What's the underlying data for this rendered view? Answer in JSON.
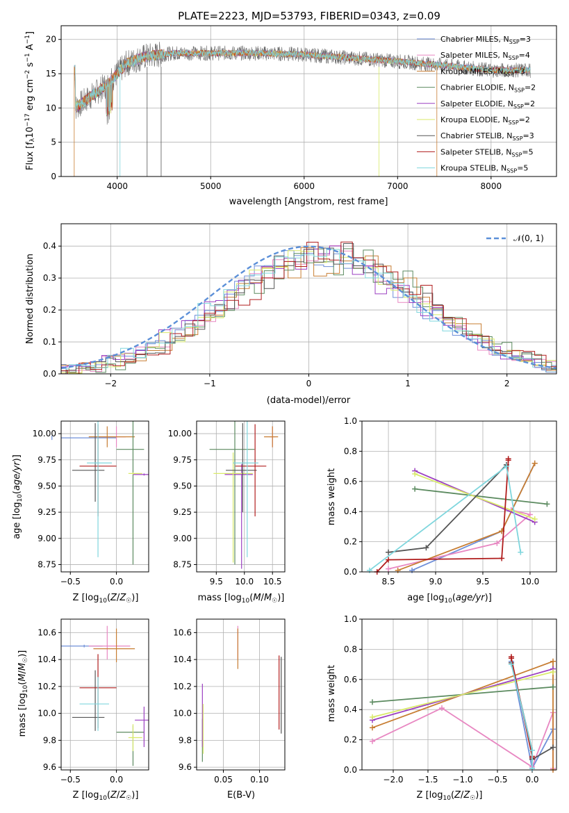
{
  "figure": {
    "title": "PLATE=2223, MJD=53793, FIBERID=0343, z=0.09"
  },
  "spectrum_panel": {
    "xlabel": "wavelength [Angstrom, rest frame]",
    "ylabel": "Flux [f_λ 10^-17 erg cm^-2 s^-1 A^-1]",
    "xticks": [
      "4000",
      "5000",
      "6000",
      "7000",
      "8000"
    ],
    "yticks": [
      "0",
      "5",
      "10",
      "15",
      "20"
    ]
  },
  "residual_panel": {
    "xlabel": "(data-model)/error",
    "ylabel": "Normed distribution",
    "xticks": [
      "−2",
      "−1",
      "0",
      "1",
      "2"
    ],
    "yticks": [
      "0.0",
      "0.1",
      "0.2",
      "0.3",
      "0.4"
    ],
    "legend_label": "𝒩(0, 1)"
  },
  "legend": [
    {
      "main": "Chabrier MILES, N",
      "sub": "SSP",
      "tail": "=3",
      "color": "#6f8fd8"
    },
    {
      "main": "Salpeter MILES, N",
      "sub": "SSP",
      "tail": "=4",
      "color": "#e887c2"
    },
    {
      "main": "Kroupa MILES, N",
      "sub": "SSP",
      "tail": "=3",
      "color": "#c77d32"
    },
    {
      "main": "Chabrier ELODIE, N",
      "sub": "SSP",
      "tail": "=2",
      "color": "#5b8a5f"
    },
    {
      "main": "Salpeter ELODIE, N",
      "sub": "SSP",
      "tail": "=2",
      "color": "#9b3fc1"
    },
    {
      "main": "Kroupa ELODIE, N",
      "sub": "SSP",
      "tail": "=2",
      "color": "#d9ea6a"
    },
    {
      "main": "Chabrier STELIB, N",
      "sub": "SSP",
      "tail": "=3",
      "color": "#555555"
    },
    {
      "main": "Salpeter STELIB, N",
      "sub": "SSP",
      "tail": "=5",
      "color": "#b01c1c"
    },
    {
      "main": "Kroupa STELIB, N",
      "sub": "SSP",
      "tail": "=5",
      "color": "#7fd6dd"
    }
  ],
  "small_panels": {
    "age_vs_Z": {
      "xlabel": "Z [log10(Z/Z☉)]",
      "ylabel": "age  [log10(age/yr)]",
      "xticks": [
        "−0.5",
        "0.0"
      ],
      "yticks": [
        "8.75",
        "9.00",
        "9.25",
        "9.50",
        "9.75",
        "10.00"
      ]
    },
    "age_vs_mass": {
      "xlabel": "mass [log10(M/M☉)]",
      "xticks": [
        "9.5",
        "10.0",
        "10.5"
      ],
      "yticks": [
        "8.75",
        "9.00",
        "9.25",
        "9.50",
        "9.75",
        "10.00"
      ]
    },
    "mass_vs_Z": {
      "xlabel": "Z [log10(Z/Z☉)]",
      "ylabel": "mass [log10(M/M☉)]",
      "xticks": [
        "−0.5",
        "0.0"
      ],
      "yticks": [
        "9.6",
        "9.8",
        "10.0",
        "10.2",
        "10.4",
        "10.6"
      ]
    },
    "mass_vs_EBV": {
      "xlabel": "E(B-V)",
      "xticks": [
        "0.05",
        "0.10"
      ],
      "yticks": [
        "9.6",
        "9.8",
        "10.0",
        "10.2",
        "10.4",
        "10.6"
      ]
    }
  },
  "weight_panels": {
    "vs_age": {
      "xlabel": "age  [log10(age/yr)]",
      "ylabel": "mass weight",
      "xticks": [
        "8.5",
        "9.0",
        "9.5",
        "10.0"
      ],
      "yticks": [
        "0.0",
        "0.2",
        "0.4",
        "0.6",
        "0.8",
        "1.0"
      ]
    },
    "vs_Z": {
      "xlabel": "Z [log10(Z/Z☉)]",
      "ylabel": "mass weight",
      "xticks": [
        "−2.0",
        "−1.5",
        "−1.0",
        "−0.5",
        "0.0"
      ],
      "yticks": [
        "0.0",
        "0.2",
        "0.4",
        "0.6",
        "0.8",
        "1.0"
      ]
    }
  },
  "chart_data": [
    {
      "type": "line",
      "panel": "spectrum",
      "x_range": [
        3400,
        8700
      ],
      "ylim": [
        0,
        22
      ],
      "grid": true,
      "legend_position": "top-right",
      "continuum_points": [
        [
          3550,
          10
        ],
        [
          3700,
          11.5
        ],
        [
          3900,
          13.5
        ],
        [
          4100,
          16.5
        ],
        [
          4300,
          17.5
        ],
        [
          4600,
          18
        ],
        [
          5000,
          18
        ],
        [
          5500,
          18
        ],
        [
          6000,
          17.8
        ],
        [
          6500,
          17.3
        ],
        [
          7000,
          16.8
        ],
        [
          7500,
          16.2
        ],
        [
          8000,
          15.5
        ],
        [
          8400,
          15.5
        ]
      ]
    },
    {
      "type": "bar",
      "panel": "residual_histogram",
      "x_range": [
        -2.5,
        2.5
      ],
      "ylim": [
        0,
        0.47
      ],
      "grid": true,
      "legend_position": "top-right",
      "reference_curve": "normal(0,1)"
    },
    {
      "type": "scatter",
      "panel": "age_vs_Z",
      "xlim": [
        -0.6,
        0.35
      ],
      "ylim": [
        8.68,
        10.12
      ],
      "points": [
        {
          "model": "Chabrier MILES",
          "Z": -0.7,
          "Z_err": [
            0.7,
            0.7
          ],
          "age": 9.96,
          "age_err": [
            0.02,
            0.02
          ],
          "color": "#6f8fd8"
        },
        {
          "model": "Salpeter MILES",
          "Z": 0.0,
          "Z_err": [
            0.2,
            0.1
          ],
          "age": 9.97,
          "age_err": [
            0.1,
            0.1
          ],
          "color": "#e887c2"
        },
        {
          "model": "Kroupa MILES",
          "Z": -0.1,
          "Z_err": [
            0.2,
            0.3
          ],
          "age": 9.97,
          "age_err": [
            0.1,
            0.1
          ],
          "color": "#c77d32"
        },
        {
          "model": "Chabrier ELODIE",
          "Z": 0.18,
          "Z_err": [
            0.18,
            0.12
          ],
          "age": 9.85,
          "age_err": [
            1.1,
            0.3
          ],
          "color": "#5b8a5f"
        },
        {
          "model": "Salpeter ELODIE",
          "Z": 0.3,
          "Z_err": [
            0.12,
            0.05
          ],
          "age": 9.61,
          "age_err": [
            0.01,
            0.01
          ],
          "color": "#9b3fc1"
        },
        {
          "model": "Kroupa ELODIE",
          "Z": 0.18,
          "Z_err": [
            0.05,
            0.1
          ],
          "age": 9.62,
          "age_err": [
            0.01,
            0.01
          ],
          "color": "#d9ea6a"
        },
        {
          "model": "Chabrier STELIB",
          "Z": -0.23,
          "Z_err": [
            0.25,
            0.1
          ],
          "age": 9.65,
          "age_err": [
            0.3,
            0.45
          ],
          "color": "#555555"
        },
        {
          "model": "Salpeter STELIB",
          "Z": -0.2,
          "Z_err": [
            0.2,
            0.2
          ],
          "age": 9.69,
          "age_err": [
            0.48,
            0.4
          ],
          "color": "#b01c1c"
        },
        {
          "model": "Kroupa STELIB",
          "Z": -0.2,
          "Z_err": [
            0.12,
            0.15
          ],
          "age": 9.72,
          "age_err": [
            0.9,
            0.4
          ],
          "color": "#7fd6dd"
        }
      ]
    },
    {
      "type": "scatter",
      "panel": "age_vs_mass",
      "xlim": [
        9.15,
        10.72
      ],
      "ylim": [
        8.68,
        10.12
      ],
      "points": [
        {
          "model": "Salpeter MILES",
          "mass": 10.5,
          "mass_err": [
            0.05,
            0.05
          ],
          "age": 9.97,
          "age_err": [
            0.1,
            0.1
          ],
          "color": "#e887c2"
        },
        {
          "model": "Kroupa MILES",
          "mass": 10.5,
          "mass_err": [
            0.15,
            0.1
          ],
          "age": 9.97,
          "age_err": [
            0.1,
            0.1
          ],
          "color": "#c77d32"
        },
        {
          "model": "Chabrier ELODIE",
          "mass": 9.83,
          "mass_err": [
            0.45,
            0.35
          ],
          "age": 9.85,
          "age_err": [
            1.1,
            0.3
          ],
          "color": "#5b8a5f"
        },
        {
          "model": "Salpeter ELODIE",
          "mass": 9.95,
          "mass_err": [
            0.3,
            0.2
          ],
          "age": 9.61,
          "age_err": [
            0.9,
            0.1
          ],
          "color": "#9b3fc1"
        },
        {
          "model": "Kroupa ELODIE",
          "mass": 9.8,
          "mass_err": [
            0.35,
            0.35
          ],
          "age": 9.62,
          "age_err": [
            0.85,
            0.2
          ],
          "color": "#d9ea6a"
        },
        {
          "model": "Chabrier STELIB",
          "mass": 9.97,
          "mass_err": [
            0.3,
            0.25
          ],
          "age": 9.65,
          "age_err": [
            0.4,
            0.45
          ],
          "color": "#555555"
        },
        {
          "model": "Salpeter STELIB",
          "mass": 10.19,
          "mass_err": [
            0.35,
            0.2
          ],
          "age": 9.69,
          "age_err": [
            0.48,
            0.4
          ],
          "color": "#b01c1c"
        },
        {
          "model": "Kroupa STELIB",
          "mass": 10.05,
          "mass_err": [
            0.25,
            0.2
          ],
          "age": 9.72,
          "age_err": [
            0.9,
            0.4
          ],
          "color": "#7fd6dd"
        }
      ]
    },
    {
      "type": "line",
      "panel": "mass_weight_vs_age",
      "xlim": [
        8.22,
        10.28
      ],
      "ylim": [
        0,
        1
      ],
      "series": [
        {
          "name": "Chabrier MILES",
          "color": "#6f8fd8",
          "x": [
            8.75,
            9.7,
            10.05
          ],
          "y": [
            0.01,
            0.27,
            0.72
          ]
        },
        {
          "name": "Salpeter MILES",
          "color": "#e887c2",
          "x": [
            8.5,
            9.65,
            10.0,
            9.8
          ],
          "y": [
            0.02,
            0.19,
            0.38,
            0.41
          ]
        },
        {
          "name": "Kroupa MILES",
          "color": "#c77d32",
          "x": [
            8.6,
            9.7,
            10.05
          ],
          "y": [
            0.01,
            0.27,
            0.72
          ]
        },
        {
          "name": "Chabrier ELODIE",
          "color": "#5b8a5f",
          "x": [
            8.78,
            10.18
          ],
          "y": [
            0.55,
            0.45
          ]
        },
        {
          "name": "Salpeter ELODIE",
          "color": "#9b3fc1",
          "x": [
            8.78,
            10.05
          ],
          "y": [
            0.67,
            0.33
          ]
        },
        {
          "name": "Kroupa ELODIE",
          "color": "#d9ea6a",
          "x": [
            8.78,
            10.05
          ],
          "y": [
            0.65,
            0.35
          ]
        },
        {
          "name": "Chabrier STELIB",
          "color": "#555555",
          "x": [
            8.5,
            8.9,
            9.75
          ],
          "y": [
            0.13,
            0.16,
            0.71
          ]
        },
        {
          "name": "Salpeter STELIB",
          "color": "#b01c1c",
          "x": [
            8.38,
            8.5,
            9.7,
            9.77,
            9.77
          ],
          "y": [
            0.0,
            0.08,
            0.09,
            0.74,
            0.75
          ]
        },
        {
          "name": "Kroupa STELIB",
          "color": "#7fd6dd",
          "x": [
            8.3,
            9.75,
            9.9
          ],
          "y": [
            0.01,
            0.7,
            0.13
          ]
        }
      ]
    },
    {
      "type": "scatter",
      "panel": "mass_vs_Z",
      "xlim": [
        -0.6,
        0.35
      ],
      "ylim": [
        9.58,
        10.7
      ],
      "points": [
        {
          "model": "Chabrier MILES",
          "Z": -0.35,
          "Z_err": [
            0.25,
            0.2
          ],
          "mass": 10.5,
          "mass_err": [
            0.01,
            0.01
          ],
          "color": "#6f8fd8"
        },
        {
          "model": "Salpeter MILES",
          "Z": -0.1,
          "Z_err": [
            0.2,
            0.25
          ],
          "mass": 10.5,
          "mass_err": [
            0.1,
            0.15
          ],
          "color": "#e887c2"
        },
        {
          "model": "Kroupa MILES",
          "Z": 0.0,
          "Z_err": [
            0.25,
            0.2
          ],
          "mass": 10.48,
          "mass_err": [
            0.1,
            0.15
          ],
          "color": "#c77d32"
        },
        {
          "model": "Chabrier ELODIE",
          "Z": 0.18,
          "Z_err": [
            0.18,
            0.12
          ],
          "mass": 9.86,
          "mass_err": [
            0.25,
            0.05
          ],
          "color": "#5b8a5f"
        },
        {
          "model": "Salpeter ELODIE",
          "Z": 0.3,
          "Z_err": [
            0.1,
            0.05
          ],
          "mass": 9.95,
          "mass_err": [
            0.2,
            0.1
          ],
          "color": "#9b3fc1"
        },
        {
          "model": "Kroupa ELODIE",
          "Z": 0.18,
          "Z_err": [
            0.05,
            0.1
          ],
          "mass": 9.82,
          "mass_err": [
            0.1,
            0.1
          ],
          "color": "#d9ea6a"
        },
        {
          "model": "Chabrier STELIB",
          "Z": -0.23,
          "Z_err": [
            0.25,
            0.1
          ],
          "mass": 9.97,
          "mass_err": [
            0.1,
            0.35
          ],
          "color": "#555555"
        },
        {
          "model": "Salpeter STELIB",
          "Z": -0.2,
          "Z_err": [
            0.2,
            0.2
          ],
          "mass": 10.19,
          "mass_err": [
            0.3,
            0.25
          ],
          "color": "#b01c1c"
        },
        {
          "model": "Kroupa STELIB",
          "Z": -0.2,
          "Z_err": [
            0.2,
            0.12
          ],
          "mass": 10.07,
          "mass_err": [
            0.2,
            0.2
          ],
          "color": "#7fd6dd"
        }
      ]
    },
    {
      "type": "scatter",
      "panel": "mass_vs_EBV",
      "xlim": [
        0.013,
        0.135
      ],
      "ylim": [
        9.58,
        10.7
      ],
      "points": [
        {
          "model": "Salpeter MILES",
          "EBV": 0.07,
          "mass": 10.5,
          "mass_err": [
            0.1,
            0.15
          ],
          "color": "#e887c2"
        },
        {
          "model": "Kroupa MILES",
          "EBV": 0.07,
          "mass": 10.48,
          "mass_err": [
            0.15,
            0.15
          ],
          "color": "#c77d32"
        },
        {
          "model": "Chabrier ELODIE",
          "EBV": 0.021,
          "mass": 9.86,
          "mass_err": [
            0.22,
            0.1
          ],
          "color": "#5b8a5f"
        },
        {
          "model": "Salpeter ELODIE",
          "EBV": 0.021,
          "mass": 9.95,
          "mass_err": [
            0.2,
            0.27
          ],
          "color": "#9b3fc1"
        },
        {
          "model": "Kroupa ELODIE",
          "EBV": 0.022,
          "mass": 9.82,
          "mass_err": [
            0.12,
            0.25
          ],
          "color": "#d9ea6a"
        },
        {
          "model": "Salpeter STELIB",
          "EBV": 0.127,
          "mass": 10.15,
          "mass_err": [
            0.27,
            0.28
          ],
          "color": "#b01c1c"
        },
        {
          "model": "Chabrier STELIB",
          "EBV": 0.13,
          "mass": 10.15,
          "mass_err": [
            0.3,
            0.27
          ],
          "color": "#555555"
        }
      ]
    },
    {
      "type": "line",
      "panel": "mass_weight_vs_Z",
      "xlim": [
        -2.45,
        0.35
      ],
      "ylim": [
        0,
        1
      ],
      "series": [
        {
          "name": "Chabrier MILES",
          "color": "#6f8fd8",
          "x": [
            -0.3,
            0.0,
            0.3
          ],
          "y": [
            0.72,
            0.01,
            0.27
          ]
        },
        {
          "name": "Salpeter MILES",
          "color": "#e887c2",
          "x": [
            -2.3,
            -1.3,
            0.0,
            0.3,
            0.3
          ],
          "y": [
            0.19,
            0.41,
            0.02,
            0.38,
            0.01
          ]
        },
        {
          "name": "Kroupa MILES",
          "color": "#c77d32",
          "x": [
            -2.3,
            0.3,
            0.3
          ],
          "y": [
            0.28,
            0.72,
            0.0
          ]
        },
        {
          "name": "Chabrier ELODIE",
          "color": "#5b8a5f",
          "x": [
            -2.3,
            0.3
          ],
          "y": [
            0.45,
            0.55
          ]
        },
        {
          "name": "Salpeter ELODIE",
          "color": "#9b3fc1",
          "x": [
            -2.3,
            0.3
          ],
          "y": [
            0.33,
            0.67
          ]
        },
        {
          "name": "Kroupa ELODIE",
          "color": "#d9ea6a",
          "x": [
            -2.3,
            0.3
          ],
          "y": [
            0.35,
            0.65
          ]
        },
        {
          "name": "Chabrier STELIB",
          "color": "#555555",
          "x": [
            -0.3,
            0.0,
            0.0,
            0.3
          ],
          "y": [
            0.71,
            0.13,
            0.07,
            0.15
          ]
        },
        {
          "name": "Salpeter STELIB",
          "color": "#b01c1c",
          "x": [
            -0.3,
            -0.3,
            0.0,
            0.0
          ],
          "y": [
            0.75,
            0.74,
            0.09,
            0.08
          ]
        },
        {
          "name": "Kroupa STELIB",
          "color": "#7fd6dd",
          "x": [
            -0.3,
            0.0,
            0.0
          ],
          "y": [
            0.7,
            0.13,
            0.01
          ]
        }
      ]
    }
  ]
}
